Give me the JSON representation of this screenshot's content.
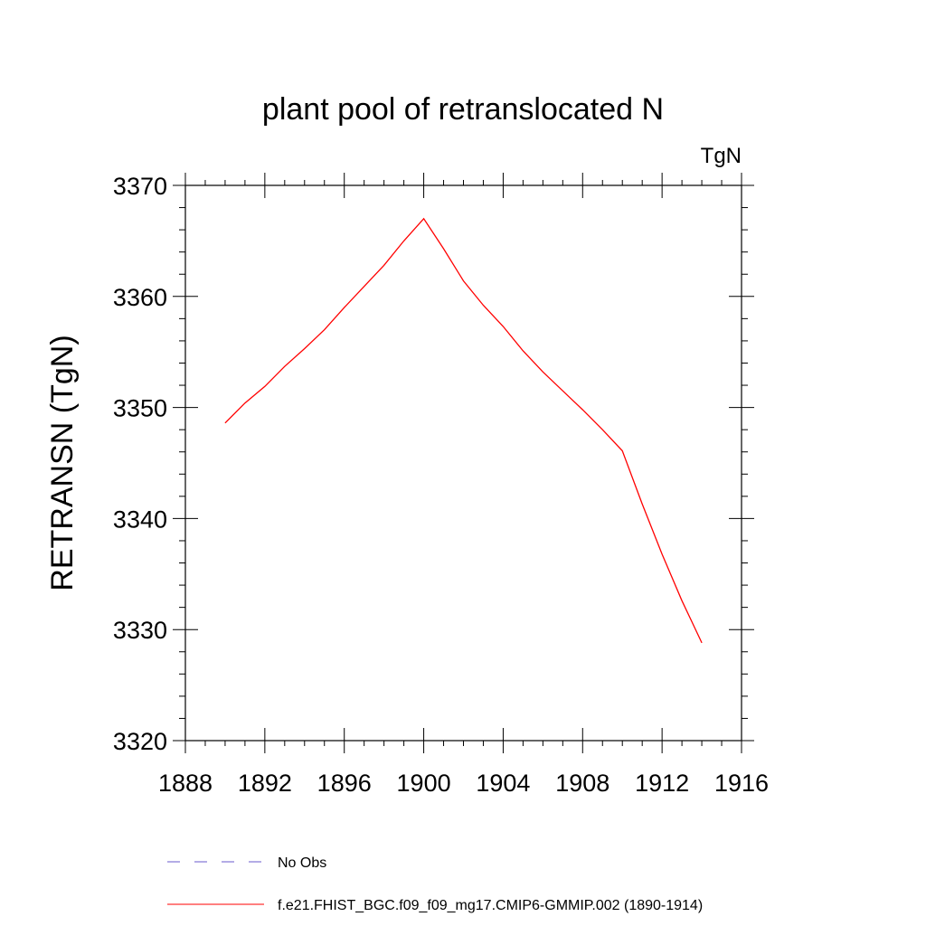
{
  "chart_data": {
    "type": "line",
    "title": "plant pool of retranslocated N",
    "units_label": "TgN",
    "ylabel": "RETRANSN  (TgN)",
    "xlabel": "",
    "xlim": [
      1888,
      1916
    ],
    "ylim": [
      3320,
      3370
    ],
    "x_ticks": [
      1888,
      1892,
      1896,
      1900,
      1904,
      1908,
      1912,
      1916
    ],
    "y_ticks": [
      3320,
      3330,
      3340,
      3350,
      3360,
      3370
    ],
    "series": [
      {
        "name": "f.e21.FHIST_BGC.f09_f09_mg17.CMIP6-GMMIP.002 (1890-1914)",
        "color": "#ff0000",
        "style": "solid",
        "x": [
          1890,
          1891,
          1892,
          1893,
          1894,
          1895,
          1896,
          1897,
          1898,
          1899,
          1900,
          1901,
          1902,
          1903,
          1904,
          1905,
          1906,
          1907,
          1908,
          1909,
          1910,
          1911,
          1912,
          1913,
          1914
        ],
        "y": [
          3348.6,
          3350.4,
          3351.9,
          3353.7,
          3355.3,
          3357.0,
          3359.0,
          3360.9,
          3362.8,
          3365.0,
          3367.0,
          3364.3,
          3361.4,
          3359.2,
          3357.3,
          3355.1,
          3353.2,
          3351.5,
          3349.8,
          3348.0,
          3346.1,
          3341.3,
          3336.8,
          3332.6,
          3328.8
        ]
      }
    ],
    "legend": [
      {
        "label": "No Obs",
        "color": "#6a5acd",
        "style": "dashed"
      },
      {
        "label": "f.e21.FHIST_BGC.f09_f09_mg17.CMIP6-GMMIP.002 (1890-1914)",
        "color": "#ff0000",
        "style": "solid"
      }
    ],
    "legend_position": "bottom",
    "grid": false
  }
}
